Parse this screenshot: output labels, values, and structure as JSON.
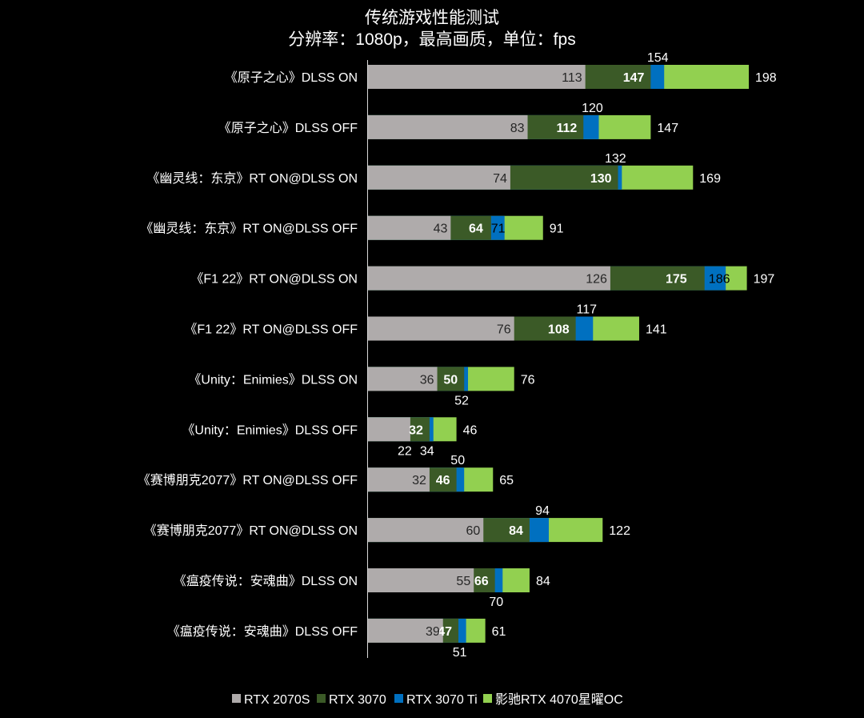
{
  "chart_data": {
    "type": "bar",
    "orientation": "horizontal",
    "overlap": true,
    "title": "传统游戏性能测试",
    "subtitle": "分辨率：1080p，最高画质，单位：fps",
    "xlim": [
      0,
      200
    ],
    "grid": false,
    "legend_position": "bottom",
    "categories": [
      "《原子之心》DLSS ON",
      "《原子之心》DLSS OFF",
      "《幽灵线：东京》RT ON@DLSS ON",
      "《幽灵线：东京》RT ON@DLSS OFF",
      "《F1 22》RT ON@DLSS ON",
      "《F1 22》RT ON@DLSS OFF",
      "《Unity：Enimies》DLSS ON",
      "《Unity：Enimies》DLSS OFF",
      "《赛博朋克2077》RT ON@DLSS OFF",
      "《赛博朋克2077》RT ON@DLSS ON",
      "《瘟疫传说：安魂曲》DLSS ON",
      "《瘟疫传说：安魂曲》DLSS OFF"
    ],
    "series": [
      {
        "name": "影驰RTX 4070星曜OC",
        "color": "#92d050",
        "values": [
          198,
          147,
          169,
          91,
          197,
          141,
          76,
          46,
          65,
          122,
          84,
          61
        ]
      },
      {
        "name": "RTX 3070 Ti",
        "color": "#0070c0",
        "values": [
          154,
          120,
          132,
          71,
          186,
          117,
          52,
          34,
          50,
          94,
          70,
          51
        ]
      },
      {
        "name": "RTX 3070",
        "color": "#3b5a27",
        "values": [
          147,
          112,
          130,
          64,
          175,
          108,
          50,
          32,
          46,
          84,
          66,
          47
        ]
      },
      {
        "name": "RTX 2070S",
        "color": "#afabab",
        "values": [
          113,
          83,
          74,
          43,
          126,
          76,
          36,
          22,
          32,
          60,
          55,
          39
        ]
      }
    ],
    "legend": [
      "RTX 2070S",
      "RTX 3070",
      "RTX 3070 Ti",
      "影驰RTX 4070星曜OC"
    ],
    "legend_colors": [
      "#afabab",
      "#3b5a27",
      "#0070c0",
      "#92d050"
    ]
  }
}
